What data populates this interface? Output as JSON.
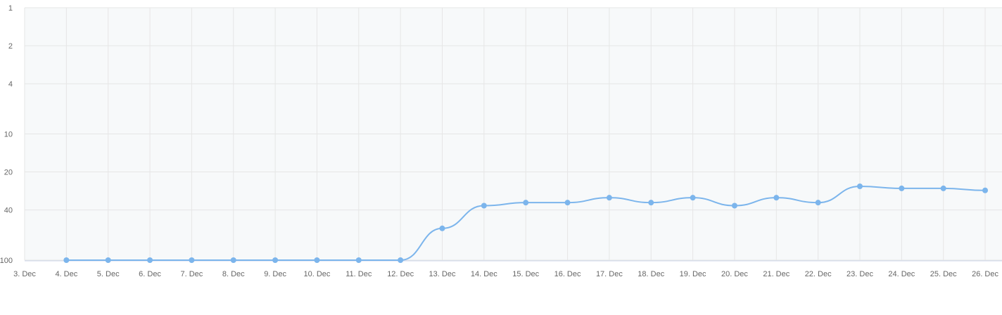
{
  "chart_data": {
    "type": "line",
    "title": "",
    "xlabel": "",
    "ylabel": "",
    "y_scale": "log",
    "y_reversed": true,
    "y_ticks": [
      1,
      2,
      4,
      10,
      20,
      40,
      100
    ],
    "ylim": [
      1,
      100
    ],
    "x_ticks": [
      "3. Dec",
      "4. Dec",
      "5. Dec",
      "6. Dec",
      "7. Dec",
      "8. Dec",
      "9. Dec",
      "10. Dec",
      "11. Dec",
      "12. Dec",
      "13. Dec",
      "14. Dec",
      "15. Dec",
      "16. Dec",
      "17. Dec",
      "18. Dec",
      "19. Dec",
      "20. Dec",
      "21. Dec",
      "22. Dec",
      "23. Dec",
      "24. Dec",
      "25. Dec",
      "26. Dec"
    ],
    "grid": true,
    "legend": "none",
    "series": [
      {
        "color": "#7cb5ec",
        "points": [
          {
            "x": "4. Dec",
            "y": 100
          },
          {
            "x": "5. Dec",
            "y": 100
          },
          {
            "x": "6. Dec",
            "y": 100
          },
          {
            "x": "7. Dec",
            "y": 100
          },
          {
            "x": "8. Dec",
            "y": 100
          },
          {
            "x": "9. Dec",
            "y": 100
          },
          {
            "x": "10. Dec",
            "y": 100
          },
          {
            "x": "11. Dec",
            "y": 100
          },
          {
            "x": "12. Dec",
            "y": 100
          },
          {
            "x": "13. Dec",
            "y": 56
          },
          {
            "x": "14. Dec",
            "y": 37
          },
          {
            "x": "15. Dec",
            "y": 35
          },
          {
            "x": "16. Dec",
            "y": 35
          },
          {
            "x": "17. Dec",
            "y": 32
          },
          {
            "x": "18. Dec",
            "y": 35
          },
          {
            "x": "19. Dec",
            "y": 32
          },
          {
            "x": "20. Dec",
            "y": 37
          },
          {
            "x": "21. Dec",
            "y": 32
          },
          {
            "x": "22. Dec",
            "y": 35
          },
          {
            "x": "23. Dec",
            "y": 26
          },
          {
            "x": "24. Dec",
            "y": 27
          },
          {
            "x": "25. Dec",
            "y": 27
          },
          {
            "x": "26. Dec",
            "y": 28
          }
        ]
      }
    ]
  }
}
